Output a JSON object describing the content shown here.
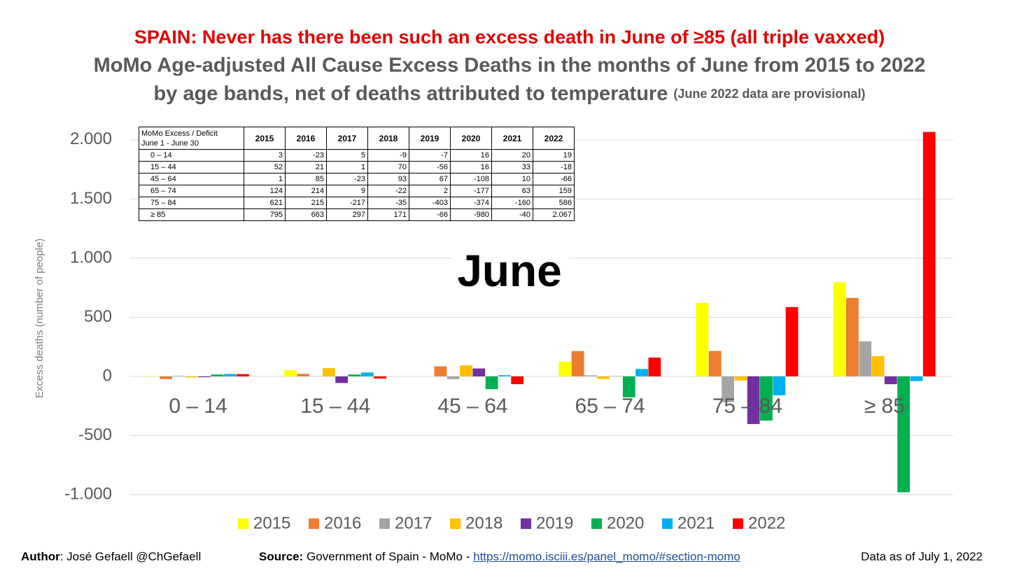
{
  "chart_data": {
    "type": "bar",
    "title": "SPAIN: Never has there been such an excess death in June of ≥85 (all triple vaxxed)",
    "subtitle": [
      "MoMo Age-adjusted All Cause Excess Deaths in the months of June from 2015 to 2022",
      "by age bands, net of deaths attributed to temperature"
    ],
    "note": "(June 2022 data are provisional)",
    "annotation": "June",
    "ylabel": "Excess deaths (number of people)",
    "categories": [
      "0 – 14",
      "15 – 44",
      "45 – 64",
      "65 – 74",
      "75 – 84",
      "≥ 85"
    ],
    "series": [
      {
        "name": "2015",
        "color": "#ffff00",
        "values": [
          3,
          52,
          1,
          124,
          621,
          795
        ]
      },
      {
        "name": "2016",
        "color": "#ed7d31",
        "values": [
          -23,
          21,
          85,
          214,
          215,
          663
        ]
      },
      {
        "name": "2017",
        "color": "#a5a5a5",
        "values": [
          5,
          1,
          -23,
          9,
          -217,
          297
        ]
      },
      {
        "name": "2018",
        "color": "#ffc000",
        "values": [
          -9,
          70,
          93,
          -22,
          -35,
          171
        ]
      },
      {
        "name": "2019",
        "color": "#7030a0",
        "values": [
          -7,
          -56,
          67,
          2,
          -403,
          -66
        ]
      },
      {
        "name": "2020",
        "color": "#00b050",
        "values": [
          16,
          16,
          -108,
          -177,
          -374,
          -980
        ]
      },
      {
        "name": "2021",
        "color": "#00b0f0",
        "values": [
          20,
          33,
          10,
          63,
          -160,
          -40
        ]
      },
      {
        "name": "2022",
        "color": "#ff0000",
        "values": [
          19,
          -18,
          -66,
          159,
          586,
          2067
        ],
        "value_labels": [
          "19",
          "-18",
          "-66",
          "159",
          "586",
          "2.067"
        ]
      }
    ],
    "ylim": [
      -1000,
      2100
    ],
    "yticks": [
      {
        "value": -1000,
        "label": "-1.000"
      },
      -500,
      0,
      500,
      {
        "value": 1000,
        "label": "1.000"
      },
      {
        "value": 1500,
        "label": "1.500"
      },
      {
        "value": 2000,
        "label": "2.000"
      }
    ],
    "grid": true,
    "legend": "bottom",
    "table_header": [
      "MoMo Excess / Deficit",
      "June 1 - June 30"
    ],
    "footer": {
      "author_label": "Author",
      "author": ": José Gefaell @ChGefaell",
      "source_label": "Source:",
      "source": " Government of Spain - MoMo - ",
      "link": "https://momo.isciii.es/panel_momo/#section-momo",
      "date": "Data as of July 1, 2022"
    }
  }
}
